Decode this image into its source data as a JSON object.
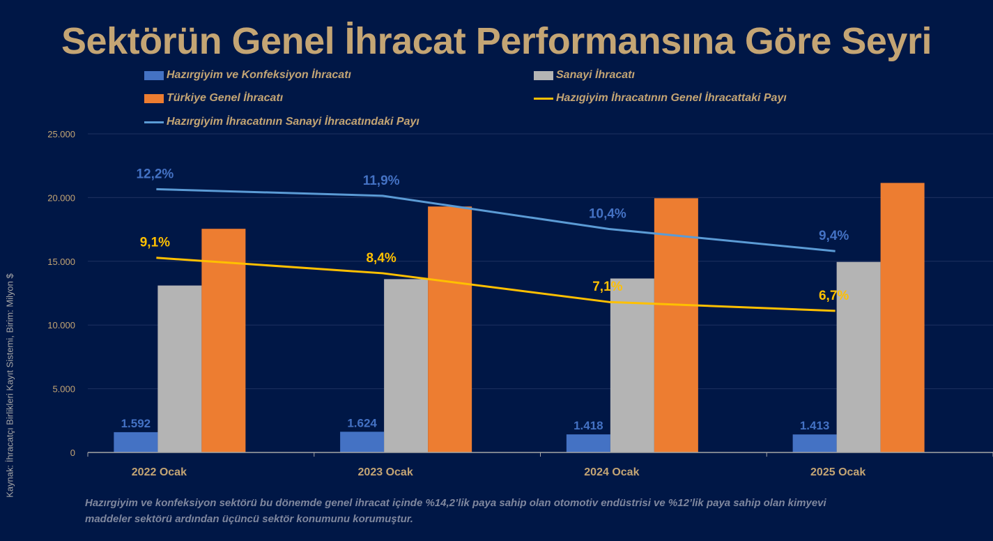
{
  "page": {
    "title": "Sektörün Genel İhracat Performansına Göre Seyri",
    "source_label": "Kaynak: İhracatçı Birlikleri Kayıt Sistemi, Birim: Milyon $",
    "note": "Hazırgiyim ve konfeksiyon sektörü bu dönemde genel ihracat içinde  %14,2’lik paya sahip olan otomotiv endüstrisi ve %12’lik paya sahip olan kimyevi maddeler sektörü ardından üçüncü sektör konumunu korumuştur."
  },
  "colors": {
    "background": "#001746",
    "title": "#C4A574",
    "hazirgiyim": "#4472C4",
    "sanayi": "#B4B4B4",
    "genel": "#ED7D31",
    "share_general": "#FFC000",
    "share_industry": "#5B9BD5",
    "gridline": "#1E3160",
    "axis": "#A6A6A6"
  },
  "legend": [
    {
      "label": "Hazırgiyim ve Konfeksiyon İhracatı",
      "kind": "box",
      "color_key": "hazirgiyim"
    },
    {
      "label": "Sanayi İhracatı",
      "kind": "box",
      "color_key": "sanayi"
    },
    {
      "label": "Türkiye Genel İhracatı",
      "kind": "box",
      "color_key": "genel"
    },
    {
      "label": "Hazıgiyim İhracatının Genel İhracattaki Payı",
      "kind": "line",
      "color_key": "share_general"
    },
    {
      "label": "Hazırgiyim İhracatının Sanayi İhracatındaki Payı",
      "kind": "line",
      "color_key": "share_industry"
    }
  ],
  "chart_data": {
    "type": "bar",
    "title": "Sektörün Genel İhracat Performansına Göre Seyri",
    "xlabel": "",
    "ylabel": "Kaynak: İhracatçı Birlikleri Kayıt Sistemi, Birim: Milyon $",
    "categories": [
      "2022 Ocak",
      "2023  Ocak",
      "2024 Ocak",
      "2025 Ocak"
    ],
    "ylim": [
      0,
      25000
    ],
    "yticks": [
      0,
      5000,
      10000,
      15000,
      20000,
      25000
    ],
    "ytick_labels": [
      "0",
      "5.000",
      "10.000",
      "15.000",
      "20.000",
      "25.000"
    ],
    "grid": true,
    "legend_position": "top",
    "series": [
      {
        "name": "Hazırgiyim ve Konfeksiyon İhracatı",
        "type": "bar",
        "color_key": "hazirgiyim",
        "values": [
          1592,
          1624,
          1418,
          1413
        ],
        "labels": [
          "1.592",
          "1.624",
          "1.418",
          "1.413"
        ]
      },
      {
        "name": "Sanayi İhracatı",
        "type": "bar",
        "color_key": "sanayi",
        "values": [
          13100,
          13600,
          13650,
          14950
        ]
      },
      {
        "name": "Türkiye Genel İhracatı",
        "type": "bar",
        "color_key": "genel",
        "values": [
          17550,
          19300,
          19950,
          21150
        ]
      },
      {
        "name": "Hazıgiyim İhracatının Genel İhracattaki Payı",
        "type": "line",
        "axis": "secondary",
        "color_key": "share_general",
        "values": [
          9.1,
          8.4,
          7.1,
          6.7
        ],
        "labels": [
          "9,1%",
          "8,4%",
          "7,1%",
          "6,7%"
        ]
      },
      {
        "name": "Hazırgiyim İhracatının Sanayi İhracatındaki Payı",
        "type": "line",
        "axis": "secondary",
        "color_key": "share_industry",
        "values": [
          12.2,
          11.9,
          10.4,
          9.4
        ],
        "labels": [
          "12,2%",
          "11,9%",
          "10,4%",
          "9,4%"
        ]
      }
    ],
    "secondary_ylim": [
      0.3,
      14.7
    ],
    "secondary_axis_visible": false
  }
}
